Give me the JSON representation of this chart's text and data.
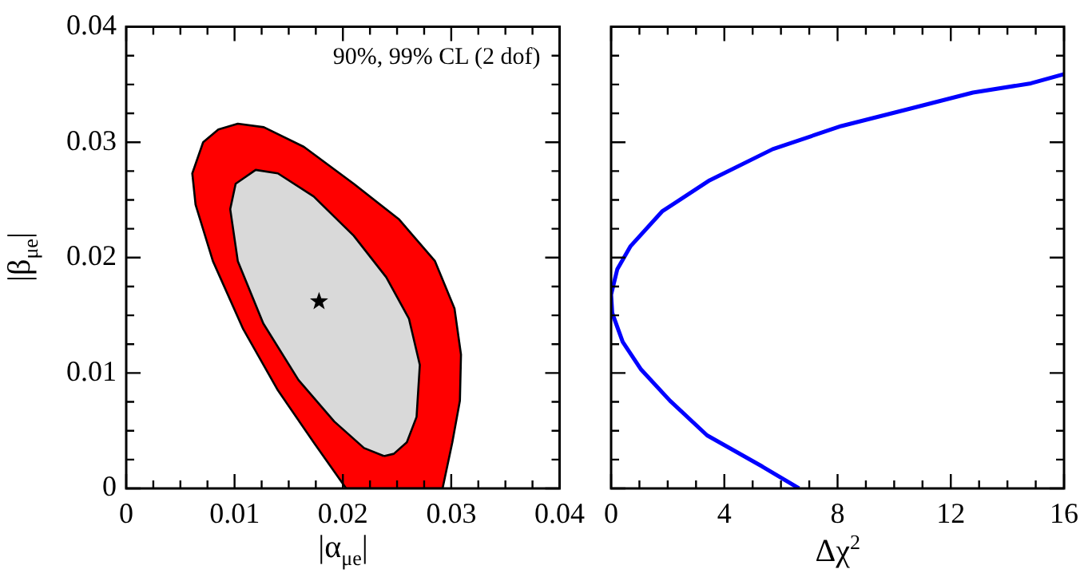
{
  "chart_data": [
    {
      "type": "area",
      "xlabel": "|α$_{μe}$|",
      "ylabel": "|β$_{μe}$|",
      "annotations": [
        "90%, 99% CL (2 dof)"
      ],
      "xlim": [
        0,
        0.04
      ],
      "ylim": [
        0,
        0.04
      ],
      "xticks": [
        0,
        {
          "value": 0.0025,
          "label": null
        },
        {
          "value": 0.005,
          "label": null
        },
        {
          "value": 0.0075,
          "label": null
        },
        0.01,
        {
          "value": 0.0125,
          "label": null
        },
        {
          "value": 0.015,
          "label": null
        },
        {
          "value": 0.0175,
          "label": null
        },
        0.02,
        {
          "value": 0.0225,
          "label": null
        },
        {
          "value": 0.025,
          "label": null
        },
        {
          "value": 0.0275,
          "label": null
        },
        0.03,
        {
          "value": 0.0325,
          "label": null
        },
        {
          "value": 0.035,
          "label": null
        },
        {
          "value": 0.0375,
          "label": null
        },
        0.04
      ],
      "yticks": [
        0,
        {
          "value": 0.0025,
          "label": null
        },
        {
          "value": 0.005,
          "label": null
        },
        {
          "value": 0.0075,
          "label": null
        },
        0.01,
        {
          "value": 0.0125,
          "label": null
        },
        {
          "value": 0.015,
          "label": null
        },
        {
          "value": 0.0175,
          "label": null
        },
        0.02,
        {
          "value": 0.0225,
          "label": null
        },
        {
          "value": 0.025,
          "label": null
        },
        {
          "value": 0.0275,
          "label": null
        },
        0.03,
        {
          "value": 0.0325,
          "label": null
        },
        {
          "value": 0.035,
          "label": null
        },
        {
          "value": 0.0375,
          "label": null
        },
        0.04
      ],
      "series": [
        {
          "color": "#ff0000",
          "x": [
            0.0203,
            0.0173,
            0.014,
            0.0108,
            0.008,
            0.0064,
            0.0061,
            0.0071,
            0.0085,
            0.0103,
            0.0127,
            0.0164,
            0.021,
            0.0252,
            0.0285,
            0.0303,
            0.0309,
            0.0308,
            0.0301,
            0.0292,
            0.0203
          ],
          "values": [
            0,
            0.004,
            0.0085,
            0.0138,
            0.0197,
            0.0246,
            0.0273,
            0.03,
            0.0311,
            0.0316,
            0.0313,
            0.0296,
            0.0264,
            0.0233,
            0.0197,
            0.0156,
            0.0116,
            0.0076,
            0.004,
            0,
            0
          ]
        },
        {
          "color": "#d9d9d9",
          "x": [
            0.0238,
            0.02195,
            0.0192,
            0.0159,
            0.01265,
            0.0103,
            0.0096,
            0.0101,
            0.01195,
            0.014,
            0.0173,
            0.021,
            0.024,
            0.0261,
            0.0271,
            0.0268,
            0.0259,
            0.0247,
            0.0238
          ],
          "values": [
            0.0028,
            0.0035,
            0.0058,
            0.0094,
            0.0143,
            0.0197,
            0.0242,
            0.0264,
            0.0276,
            0.0273,
            0.0253,
            0.0219,
            0.0183,
            0.0147,
            0.0107,
            0.0062,
            0.004,
            0.003,
            0.0028
          ]
        },
        {
          "type": "scatter",
          "marker": "star",
          "color": "#000000",
          "x": [
            0.0178
          ],
          "values": [
            0.0162
          ]
        }
      ]
    },
    {
      "type": "line",
      "xlabel": "Δχ$^{2}$",
      "tick_labels": "x",
      "xlim": [
        0,
        16
      ],
      "ylim": [
        0,
        0.04
      ],
      "xticks": [
        0,
        {
          "value": 1,
          "label": null
        },
        {
          "value": 2,
          "label": null
        },
        {
          "value": 3,
          "label": null
        },
        4,
        {
          "value": 5,
          "label": null
        },
        {
          "value": 6,
          "label": null
        },
        {
          "value": 7,
          "label": null
        },
        8,
        {
          "value": 9,
          "label": null
        },
        {
          "value": 10,
          "label": null
        },
        {
          "value": 11,
          "label": null
        },
        12,
        {
          "value": 13,
          "label": null
        },
        {
          "value": 14,
          "label": null
        },
        {
          "value": 15,
          "label": null
        },
        16
      ],
      "yticks": [
        0,
        {
          "value": 0.0025,
          "label": null
        },
        {
          "value": 0.005,
          "label": null
        },
        {
          "value": 0.0075,
          "label": null
        },
        0.01,
        {
          "value": 0.0125,
          "label": null
        },
        {
          "value": 0.015,
          "label": null
        },
        {
          "value": 0.0175,
          "label": null
        },
        0.02,
        {
          "value": 0.0225,
          "label": null
        },
        {
          "value": 0.025,
          "label": null
        },
        {
          "value": 0.0275,
          "label": null
        },
        0.03,
        {
          "value": 0.0325,
          "label": null
        },
        {
          "value": 0.035,
          "label": null
        },
        {
          "value": 0.0375,
          "label": null
        },
        0.04
      ],
      "series": [
        {
          "color": "#0000ff",
          "x": [
            6.64,
            5.34,
            3.39,
            2.08,
            1.06,
            0.41,
            0.04,
            0,
            0.22,
            0.69,
            1.8,
            3.48,
            5.71,
            8.13,
            10.55,
            12.78,
            14.83,
            16
          ],
          "values": [
            0,
            0.0019,
            0.0046,
            0.0076,
            0.0103,
            0.0127,
            0.0152,
            0.0168,
            0.019,
            0.021,
            0.024,
            0.0267,
            0.0294,
            0.0314,
            0.0329,
            0.0343,
            0.0351,
            0.0359
          ]
        }
      ]
    }
  ]
}
